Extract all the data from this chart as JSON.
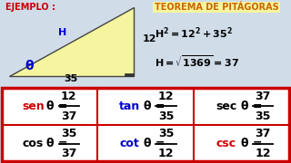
{
  "bg_color": "#d0dce8",
  "triangle_fill": "#f5f5a0",
  "table_border": "#cc0000",
  "table_bg": "#ffffff",
  "ejemplo_color": "#cc0000",
  "teorema_color": "#cc6600",
  "label_H_color": "#0000cc",
  "label_theta_color": "#0000cc",
  "rows": [
    [
      {
        "label": "sen",
        "label_color": "#cc0000",
        "theta_color": "#000000",
        "num": "12",
        "den": "37"
      },
      {
        "label": "tan",
        "label_color": "#0000cc",
        "theta_color": "#000000",
        "num": "12",
        "den": "35"
      },
      {
        "label": "sec",
        "label_color": "#000000",
        "theta_color": "#000000",
        "num": "37",
        "den": "35"
      }
    ],
    [
      {
        "label": "cos",
        "label_color": "#000000",
        "theta_color": "#000000",
        "num": "35",
        "den": "37"
      },
      {
        "label": "cot",
        "label_color": "#0000cc",
        "theta_color": "#000000",
        "num": "35",
        "den": "12"
      },
      {
        "label": "csc",
        "label_color": "#cc0000",
        "theta_color": "#000000",
        "num": "37",
        "den": "12"
      }
    ]
  ]
}
